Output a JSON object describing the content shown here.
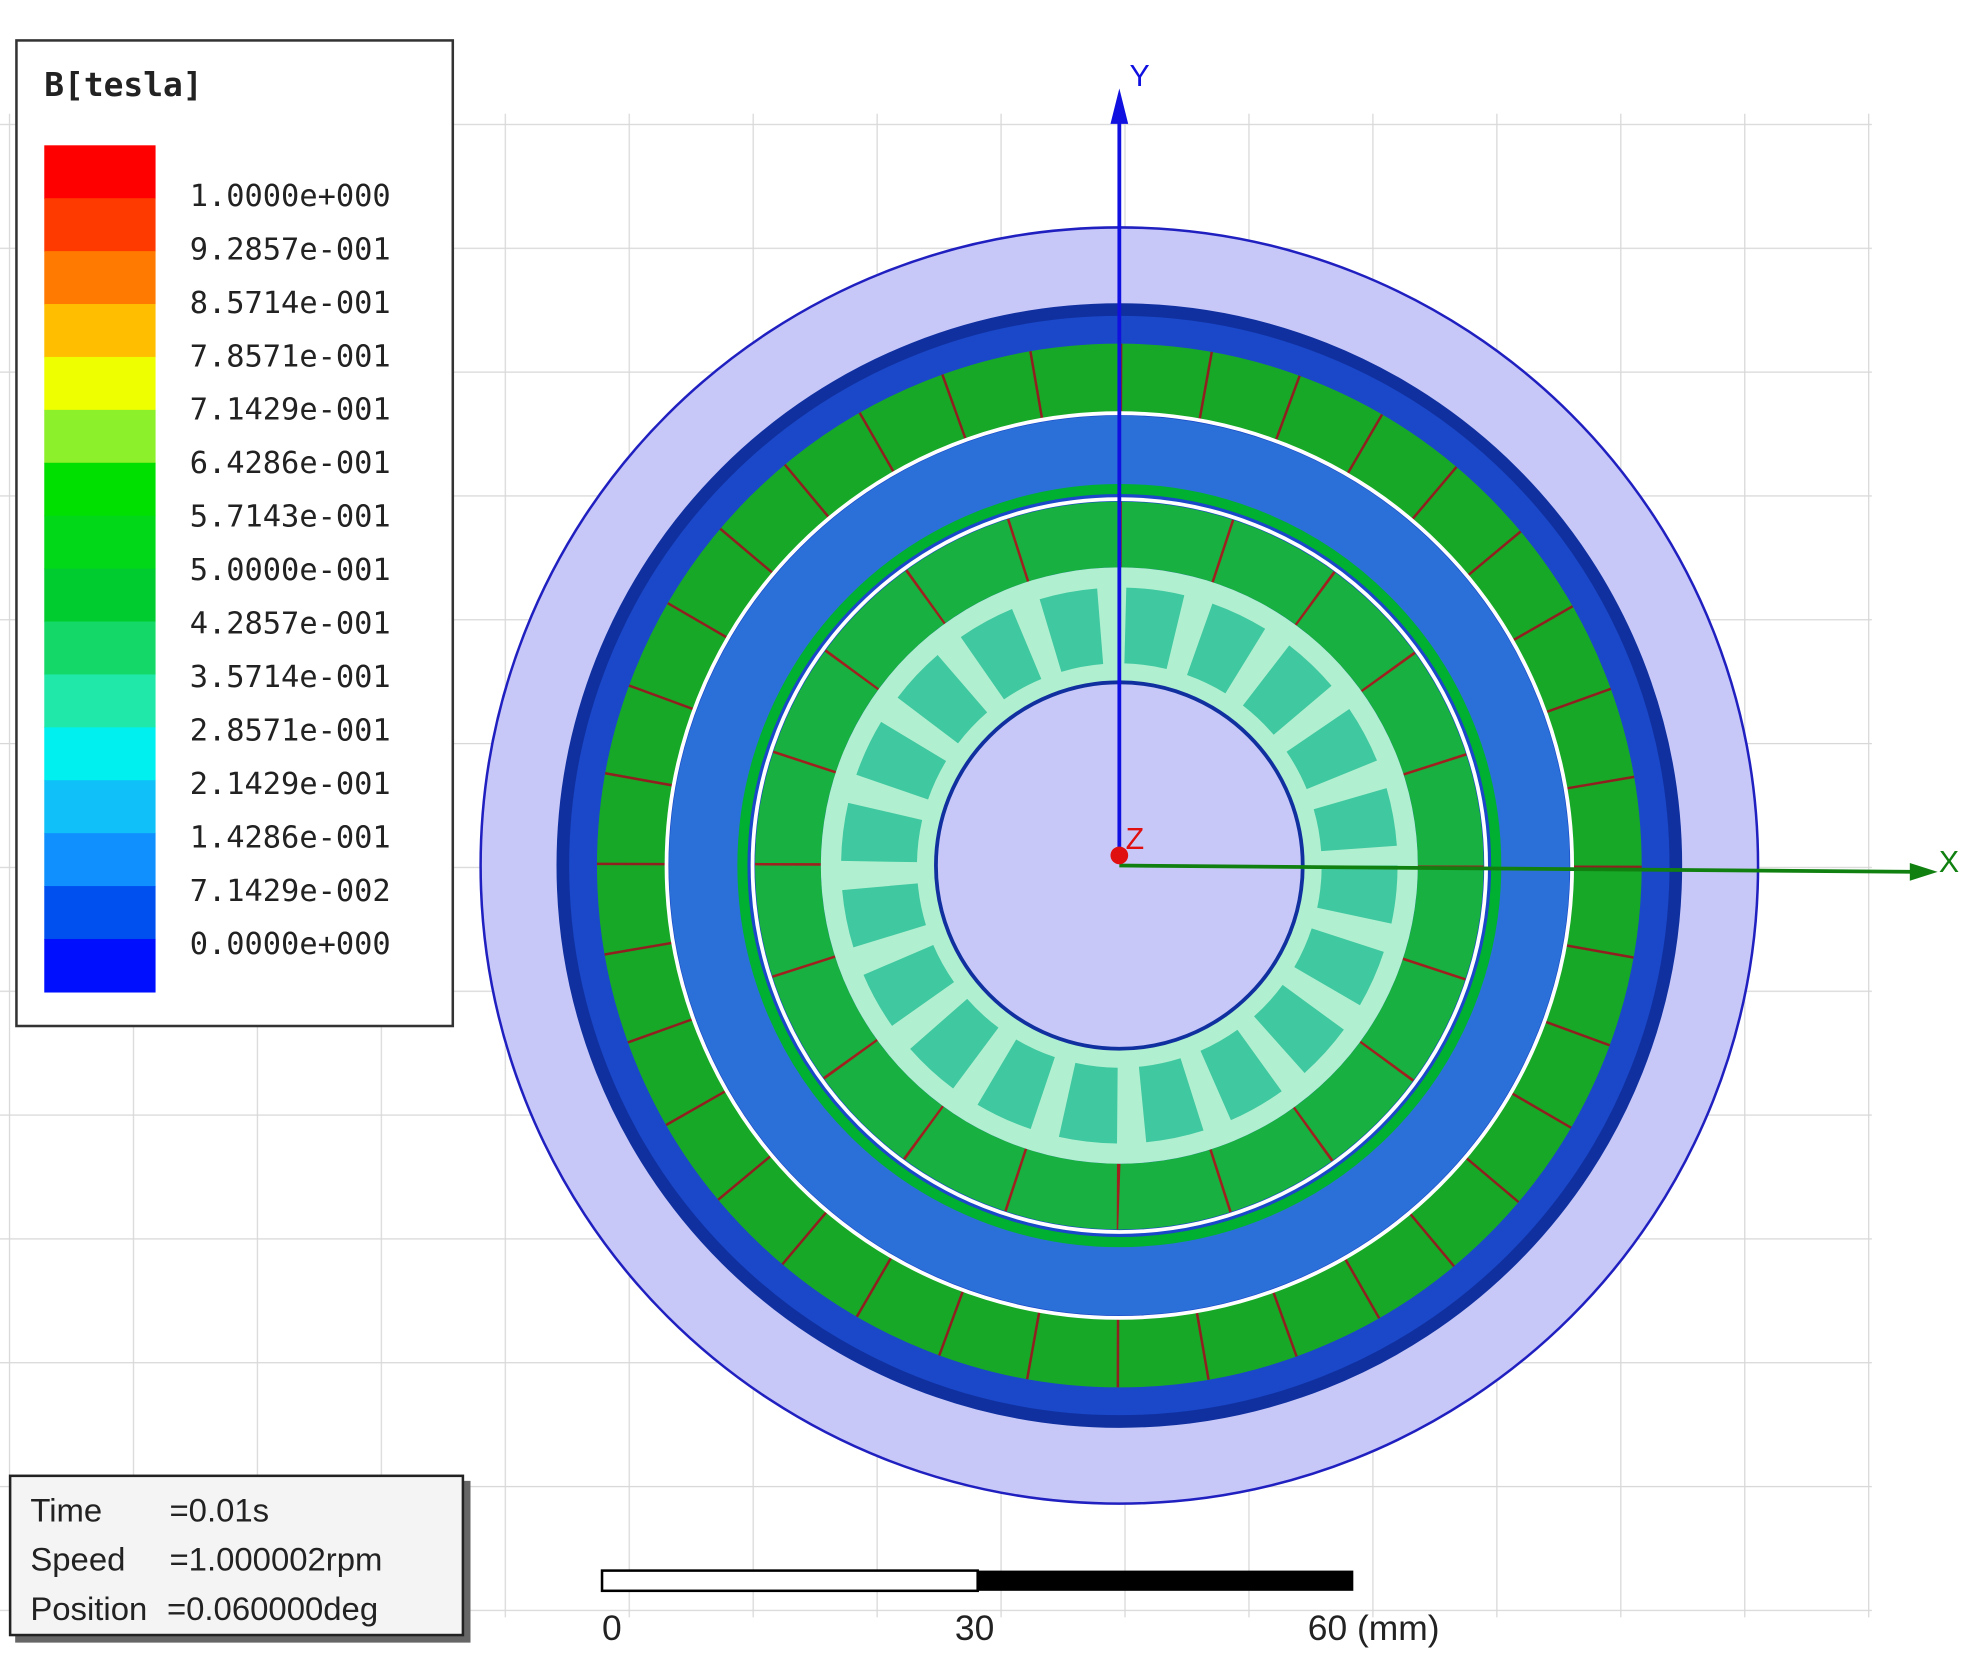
{
  "legend": {
    "title": "B[tesla]",
    "labels": [
      "1.0000e+000",
      "9.2857e-001",
      "8.5714e-001",
      "7.8571e-001",
      "7.1429e-001",
      "6.4286e-001",
      "5.7143e-001",
      "5.0000e-001",
      "4.2857e-001",
      "3.5714e-001",
      "2.8571e-001",
      "2.1429e-001",
      "1.4286e-001",
      "7.1429e-002",
      "0.0000e+000"
    ],
    "colors": [
      "#ff0000",
      "#ff3a00",
      "#ff7a00",
      "#ffbf00",
      "#eeff00",
      "#8cf02a",
      "#00e000",
      "#00d818",
      "#00cc30",
      "#14d868",
      "#20e8a8",
      "#00f0f0",
      "#10c0f8",
      "#1090ff",
      "#0050f0",
      "#0010ff"
    ]
  },
  "axes": {
    "x": "X",
    "y": "Y",
    "z": "Z"
  },
  "info": [
    {
      "label": "Time",
      "value": "=0.01s"
    },
    {
      "label": "Speed",
      "value": "=1.000002rpm"
    },
    {
      "label": "Position",
      "value": "=0.060000deg"
    }
  ],
  "scale_bar": {
    "labels": [
      "0",
      "30",
      "60 (mm)"
    ]
  }
}
